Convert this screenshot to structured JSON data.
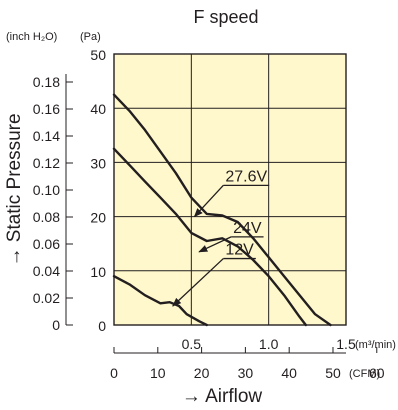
{
  "chart_data": {
    "type": "line",
    "title": "F speed",
    "ylabel": "→ Static Pressure",
    "xlabel": "→ Airflow",
    "y_unit_pa": "(Pa)",
    "y_unit_inch": "(inch H₂O)",
    "x_unit_m3": "(m³/min)",
    "x_unit_cfm": "(CFM)",
    "xlim_m3": [
      0,
      1.5
    ],
    "ylim_pa": [
      0,
      50
    ],
    "grid": true,
    "plot_bg": "#fff8cc",
    "line_color": "#231f20",
    "pa_ticks": [
      "0",
      "10",
      "20",
      "30",
      "40",
      "50"
    ],
    "pa_tick_values": [
      0,
      10,
      20,
      30,
      40,
      50
    ],
    "inch_ticks": [
      "0",
      "0.02",
      "0.04",
      "0.06",
      "0.08",
      "0.10",
      "0.12",
      "0.14",
      "0.16",
      "0.18"
    ],
    "inch_tick_values": [
      0,
      0.02,
      0.04,
      0.06,
      0.08,
      0.1,
      0.12,
      0.14,
      0.16,
      0.18
    ],
    "m3_ticks": [
      "0.5",
      "1.0",
      "1.5"
    ],
    "m3_tick_values": [
      0.5,
      1.0,
      1.5
    ],
    "cfm_ticks": [
      "0",
      "10",
      "20",
      "30",
      "40",
      "50",
      "60"
    ],
    "cfm_tick_values": [
      0,
      10,
      20,
      30,
      40,
      50,
      60
    ],
    "series": [
      {
        "name": "27.6V",
        "x": [
          0,
          0.1,
          0.2,
          0.3,
          0.4,
          0.5,
          0.6,
          0.7,
          0.8,
          0.9,
          1.0,
          1.1,
          1.2,
          1.3,
          1.4
        ],
        "y": [
          42.5,
          39.5,
          36.0,
          32.0,
          28.0,
          23.5,
          20.5,
          20.2,
          19.0,
          16.0,
          12.5,
          9.0,
          5.5,
          2.0,
          0
        ]
      },
      {
        "name": "24V",
        "x": [
          0,
          0.1,
          0.2,
          0.3,
          0.4,
          0.5,
          0.6,
          0.7,
          0.8,
          0.9,
          1.0,
          1.1,
          1.2,
          1.24
        ],
        "y": [
          32.5,
          29.5,
          26.5,
          23.5,
          20.5,
          17.0,
          15.5,
          16.0,
          14.5,
          12.0,
          9.0,
          5.5,
          1.5,
          0
        ]
      },
      {
        "name": "12V",
        "x": [
          0,
          0.1,
          0.2,
          0.3,
          0.36,
          0.42,
          0.47,
          0.55,
          0.6
        ],
        "y": [
          9.0,
          7.5,
          5.5,
          4.0,
          4.2,
          3.5,
          2.0,
          0.7,
          0
        ]
      }
    ],
    "annotations": [
      {
        "series": "27.6V",
        "label": "27.6V",
        "x": 0.72,
        "y": 26.5,
        "arrow_to": [
          0.52,
          20.0
        ]
      },
      {
        "series": "24V",
        "label": "24V",
        "x": 0.77,
        "y": 17.0,
        "arrow_to": [
          0.55,
          13.5
        ]
      },
      {
        "series": "12V",
        "label": "12V",
        "x": 0.72,
        "y": 13.0,
        "arrow_to": [
          0.38,
          3.5
        ]
      }
    ]
  }
}
